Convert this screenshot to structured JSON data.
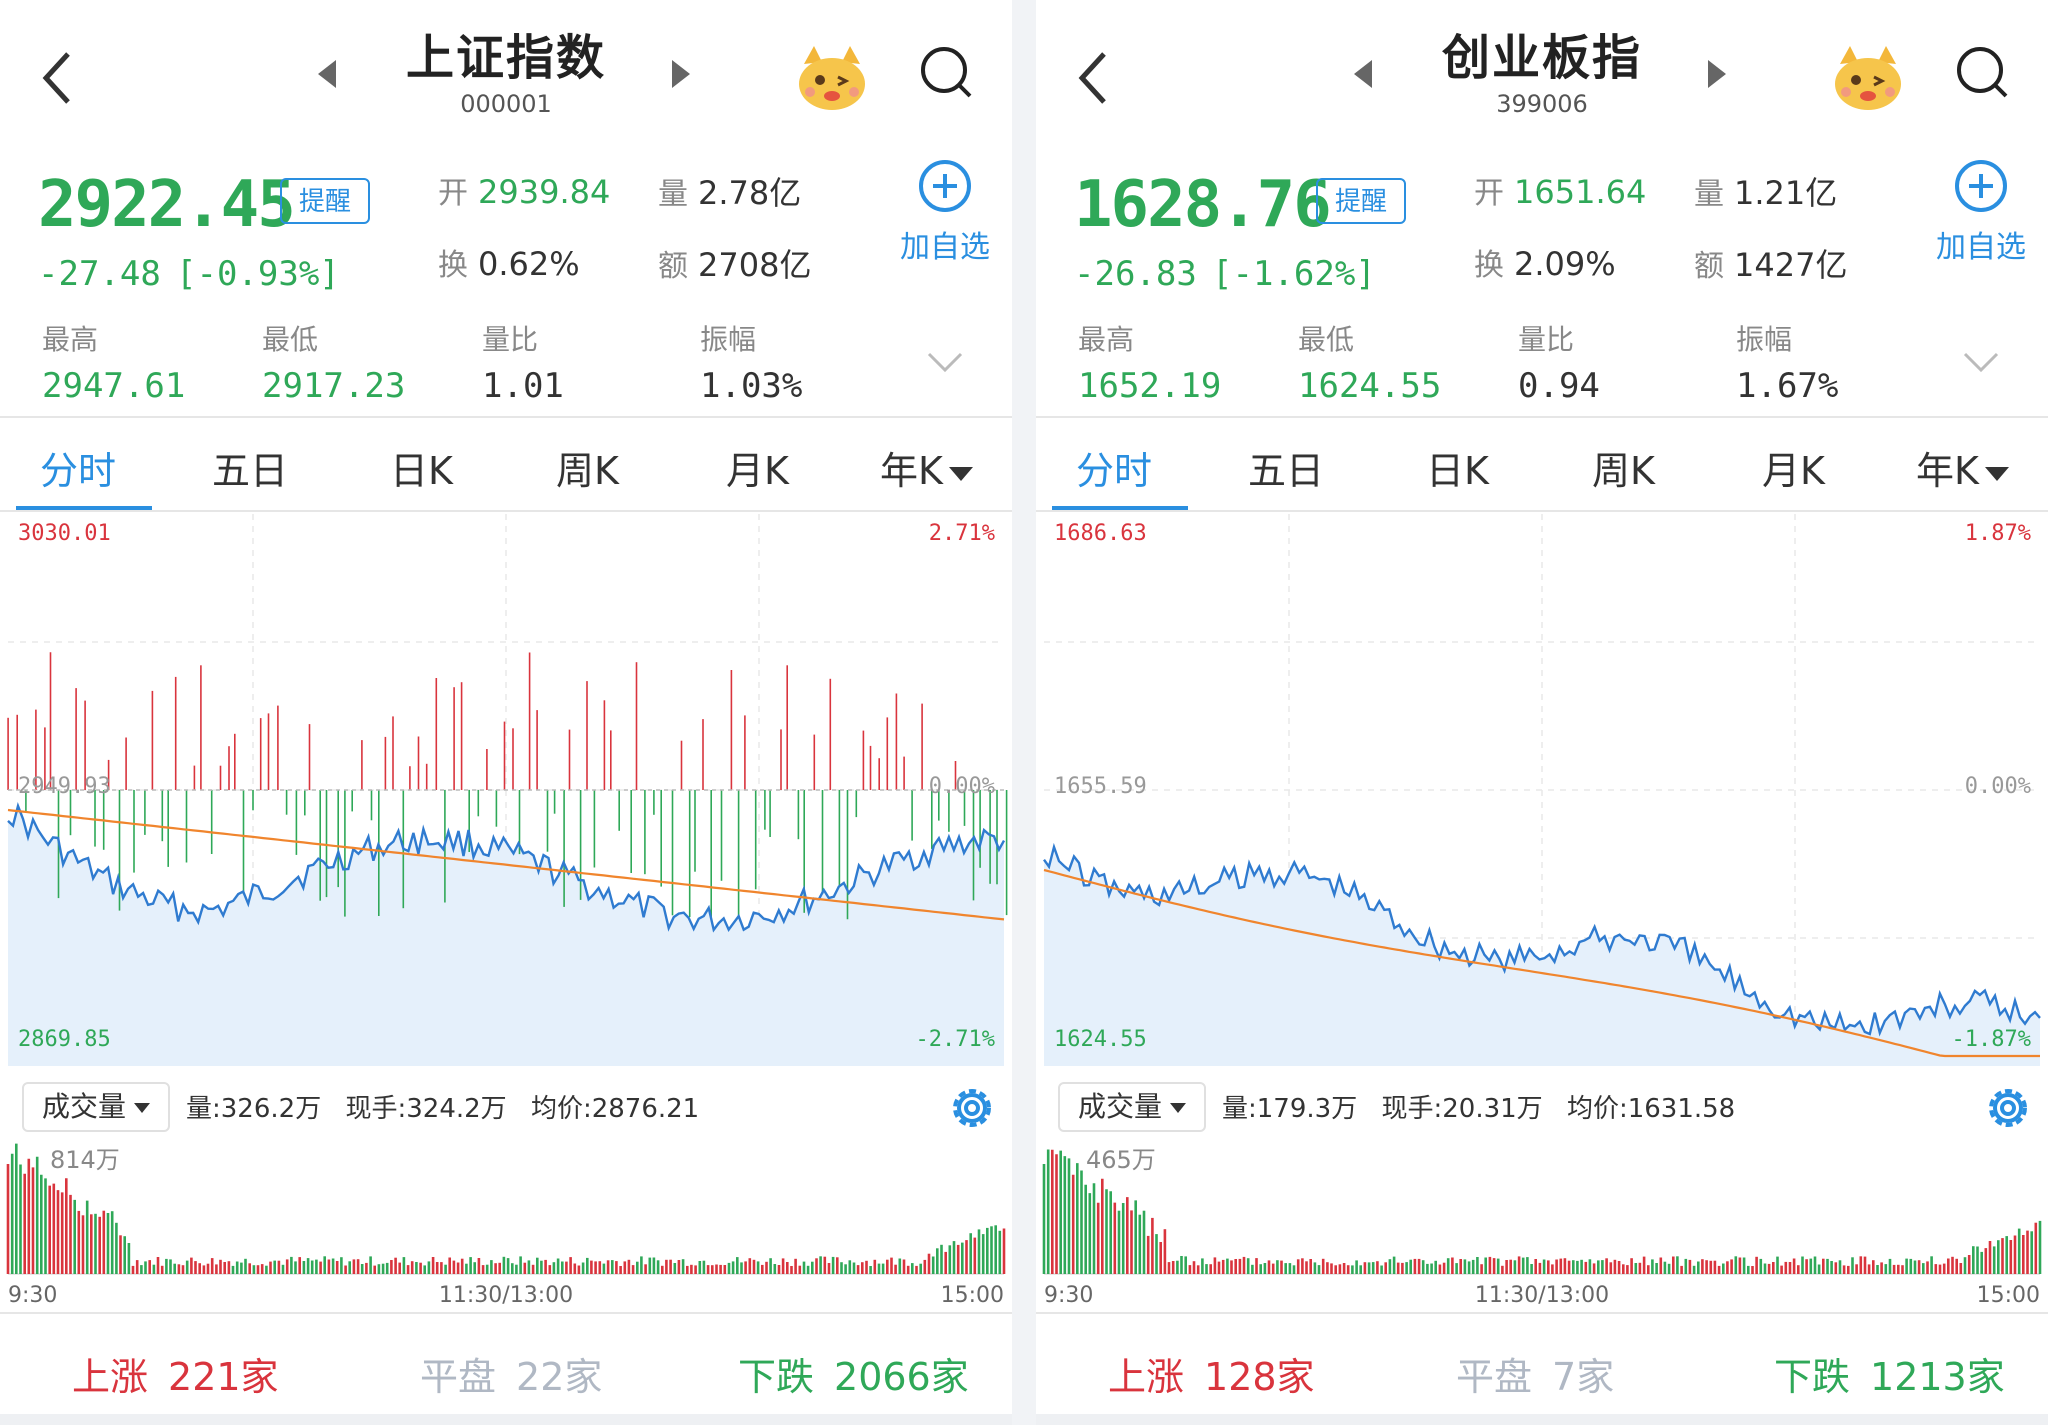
{
  "colors": {
    "up": "#d9343d",
    "down": "#2fa858",
    "accent": "#2a8fe0",
    "avg_line": "#f0852d",
    "price_line": "#2f7bd0",
    "fill": "#e5f0fb"
  },
  "panels": [
    {
      "title": "上证指数",
      "code": "000001",
      "price": "2922.45",
      "remind_label": "提醒",
      "change": "-27.48",
      "change_pct": "[-0.93%]",
      "open_label": "开",
      "open": "2939.84",
      "volume_label": "量",
      "volume": "2.78亿",
      "turnover_label": "换",
      "turnover": "0.62%",
      "amount_label": "额",
      "amount": "2708亿",
      "add_label": "加自选",
      "high_label": "最高",
      "high": "2947.61",
      "low_label": "最低",
      "low": "2917.23",
      "ratio_label": "量比",
      "ratio": "1.01",
      "amp_label": "振幅",
      "amp": "1.03%",
      "tabs": [
        "分时",
        "五日",
        "日K",
        "周K",
        "月K",
        "年K"
      ],
      "chart": {
        "top_left": "3030.01",
        "top_right": "2.71%",
        "mid_left": "2949.93",
        "mid_right": "0.00%",
        "bottom_left": "2869.85",
        "bottom_right": "-2.71%"
      },
      "vol_select": "成交量",
      "vol_info": {
        "vol": "量:326.2万",
        "now": "现手:324.2万",
        "avg": "均价:2876.21"
      },
      "vol_max": "814万",
      "time_labels": [
        "9:30",
        "11:30/13:00",
        "15:00"
      ],
      "footer": {
        "up_label": "上涨",
        "up": "221家",
        "flat_label": "平盘",
        "flat": "22家",
        "down_label": "下跌",
        "down": "2066家"
      }
    },
    {
      "title": "创业板指",
      "code": "399006",
      "price": "1628.76",
      "remind_label": "提醒",
      "change": "-26.83",
      "change_pct": "[-1.62%]",
      "open_label": "开",
      "open": "1651.64",
      "volume_label": "量",
      "volume": "1.21亿",
      "turnover_label": "换",
      "turnover": "2.09%",
      "amount_label": "额",
      "amount": "1427亿",
      "add_label": "加自选",
      "high_label": "最高",
      "high": "1652.19",
      "low_label": "最低",
      "low": "1624.55",
      "ratio_label": "量比",
      "ratio": "0.94",
      "amp_label": "振幅",
      "amp": "1.67%",
      "tabs": [
        "分时",
        "五日",
        "日K",
        "周K",
        "月K",
        "年K"
      ],
      "chart": {
        "top_left": "1686.63",
        "top_right": "1.87%",
        "mid_left": "1655.59",
        "mid_right": "0.00%",
        "bottom_left": "1624.55",
        "bottom_right": "-1.87%"
      },
      "vol_select": "成交量",
      "vol_info": {
        "vol": "量:179.3万",
        "now": "现手:20.31万",
        "avg": "均价:1631.58"
      },
      "vol_max": "465万",
      "time_labels": [
        "9:30",
        "11:30/13:00",
        "15:00"
      ],
      "footer": {
        "up_label": "上涨",
        "up": "128家",
        "flat_label": "平盘",
        "flat": "7家",
        "down_label": "下跌",
        "down": "1213家"
      }
    }
  ]
}
